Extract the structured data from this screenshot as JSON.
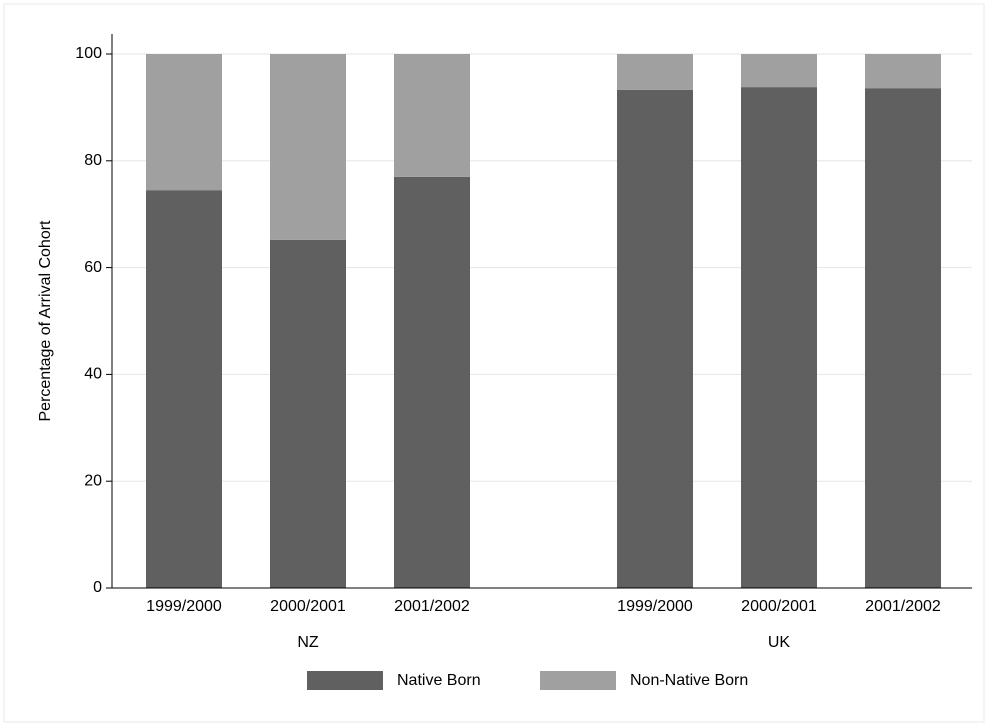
{
  "chart_data": {
    "type": "grouped-stacked-bar",
    "y_label": "Percentage of Arrival Cohort",
    "groups": [
      {
        "name": "NZ",
        "categories": [
          "1999/2000",
          "2000/2001",
          "2001/2002"
        ]
      },
      {
        "name": "UK",
        "categories": [
          "1999/2000",
          "2000/2001",
          "2001/2002"
        ]
      }
    ],
    "series": [
      {
        "name": "Native Born",
        "color": "#606060",
        "values": [
          [
            74.5,
            65.2,
            77.0
          ],
          [
            93.3,
            93.8,
            93.6
          ]
        ]
      },
      {
        "name": "Non-Native Born",
        "color": "#a0a0a0",
        "values": [
          [
            25.5,
            34.8,
            23.0
          ],
          [
            6.7,
            6.2,
            6.4
          ]
        ]
      }
    ],
    "ylim": [
      0,
      100
    ],
    "yticks": [
      0,
      20,
      40,
      60,
      80,
      100
    ],
    "grid": true,
    "legend": "bottom"
  }
}
